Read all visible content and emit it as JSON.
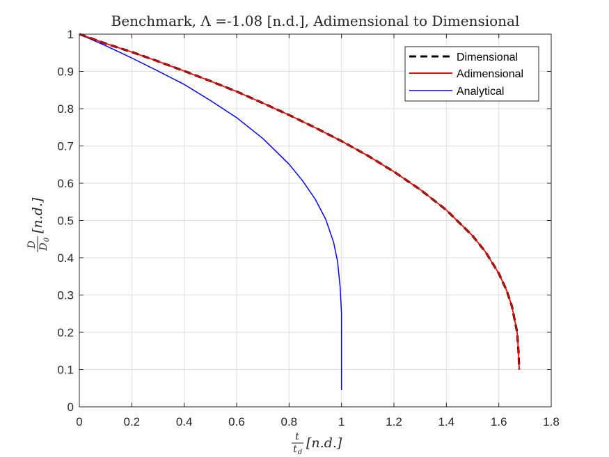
{
  "chart_data": {
    "type": "line",
    "title": "Benchmark, Λ =-1.08 [n.d.], Adimensional to Dimensional",
    "xlabel": {
      "num": "t",
      "den": "t",
      "den_sub": "d",
      "unit": "[n.d.]"
    },
    "ylabel": {
      "num": "D",
      "den": "D",
      "den_sub": "0",
      "unit": "[n.d.]"
    },
    "xlim": [
      0,
      1.8
    ],
    "ylim": [
      0,
      1
    ],
    "xticks": [
      "0",
      "0.2",
      "0.4",
      "0.6",
      "0.8",
      "1",
      "1.2",
      "1.4",
      "1.6",
      "1.8"
    ],
    "yticks": [
      "0",
      "0.1",
      "0.2",
      "0.3",
      "0.4",
      "0.5",
      "0.6",
      "0.7",
      "0.8",
      "0.9",
      "1"
    ],
    "xtick_values": [
      0,
      0.2,
      0.4,
      0.6,
      0.8,
      1.0,
      1.2,
      1.4,
      1.6,
      1.8
    ],
    "ytick_values": [
      0,
      0.1,
      0.2,
      0.3,
      0.4,
      0.5,
      0.6,
      0.7,
      0.8,
      0.9,
      1.0
    ],
    "grid": true,
    "legend_position": "top-right",
    "series": [
      {
        "name": "Dimensional",
        "color": "#000000",
        "style": "dashed",
        "x": [
          0,
          0.1,
          0.2,
          0.3,
          0.4,
          0.5,
          0.6,
          0.7,
          0.8,
          0.9,
          1.0,
          1.1,
          1.2,
          1.3,
          1.4,
          1.5,
          1.55,
          1.6,
          1.63,
          1.65,
          1.67,
          1.675,
          1.678
        ],
        "y": [
          1.0,
          0.975,
          0.952,
          0.927,
          0.901,
          0.874,
          0.846,
          0.815,
          0.783,
          0.749,
          0.713,
          0.674,
          0.631,
          0.583,
          0.528,
          0.459,
          0.415,
          0.358,
          0.312,
          0.27,
          0.2,
          0.15,
          0.1
        ]
      },
      {
        "name": "Adimensional",
        "color": "#ff0000",
        "style": "solid",
        "x": [
          0,
          0.1,
          0.2,
          0.3,
          0.4,
          0.5,
          0.6,
          0.7,
          0.8,
          0.9,
          1.0,
          1.1,
          1.2,
          1.3,
          1.4,
          1.5,
          1.55,
          1.6,
          1.63,
          1.65,
          1.67,
          1.675,
          1.678
        ],
        "y": [
          1.0,
          0.975,
          0.952,
          0.927,
          0.901,
          0.874,
          0.846,
          0.815,
          0.783,
          0.749,
          0.713,
          0.674,
          0.631,
          0.583,
          0.528,
          0.459,
          0.415,
          0.358,
          0.312,
          0.27,
          0.2,
          0.15,
          0.1
        ]
      },
      {
        "name": "Analytical",
        "color": "#0000ff",
        "style": "solid",
        "x": [
          0,
          0.1,
          0.2,
          0.3,
          0.4,
          0.5,
          0.6,
          0.7,
          0.8,
          0.85,
          0.9,
          0.94,
          0.97,
          0.985,
          0.995,
          1.0,
          1.0
        ],
        "y": [
          1.0,
          0.969,
          0.936,
          0.901,
          0.865,
          0.822,
          0.776,
          0.72,
          0.651,
          0.608,
          0.557,
          0.503,
          0.441,
          0.39,
          0.32,
          0.25,
          0.045
        ]
      }
    ]
  }
}
